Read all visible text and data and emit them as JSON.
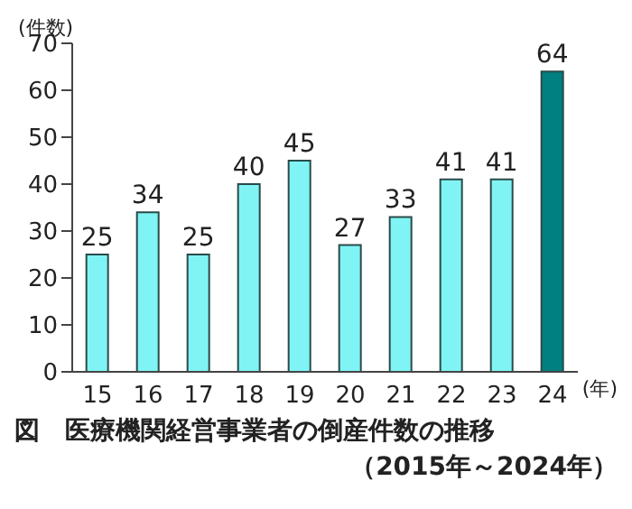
{
  "chart_data": {
    "type": "bar",
    "title": "図　医療機関経営事業者の倒産件数の推移",
    "subtitle": "（2015年～2024年）",
    "ylabel": "(件数)",
    "xlabel": "(年)",
    "categories": [
      "15",
      "16",
      "17",
      "18",
      "19",
      "20",
      "21",
      "22",
      "23",
      "24"
    ],
    "values": [
      25,
      34,
      25,
      40,
      45,
      27,
      33,
      41,
      41,
      64
    ],
    "colors": [
      "#80f4f4",
      "#80f4f4",
      "#80f4f4",
      "#80f4f4",
      "#80f4f4",
      "#80f4f4",
      "#80f4f4",
      "#80f4f4",
      "#80f4f4",
      "#008080"
    ],
    "ylim": [
      0,
      70
    ],
    "yticks": [
      0,
      10,
      20,
      30,
      40,
      50,
      60,
      70
    ],
    "grid": false,
    "data_labels": true
  }
}
